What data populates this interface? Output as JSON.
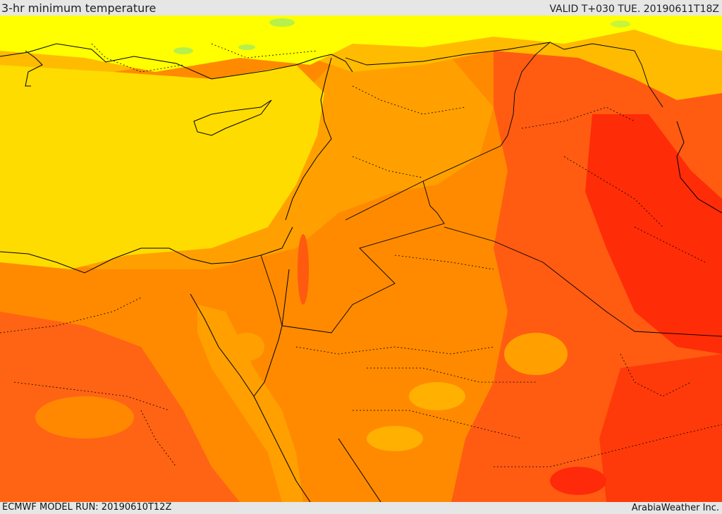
{
  "header": {
    "title": "3-hr minimum temperature",
    "valid_time": "VALID T+030 TUE. 20190611T18Z"
  },
  "footer": {
    "model_run": "ECMWF MODEL RUN: 20190610T12Z",
    "credit": "ArabiaWeather Inc."
  },
  "map": {
    "variable": "3-hr minimum temperature",
    "colors": {
      "cool_green": "#b6f04a",
      "light_yellow": "#ffff00",
      "yellow": "#ffe000",
      "gold": "#ffc400",
      "orange_light": "#ffa600",
      "orange": "#ff8400",
      "red_orange": "#ff5a14",
      "red": "#ff2a0a",
      "border": "#000000"
    }
  }
}
